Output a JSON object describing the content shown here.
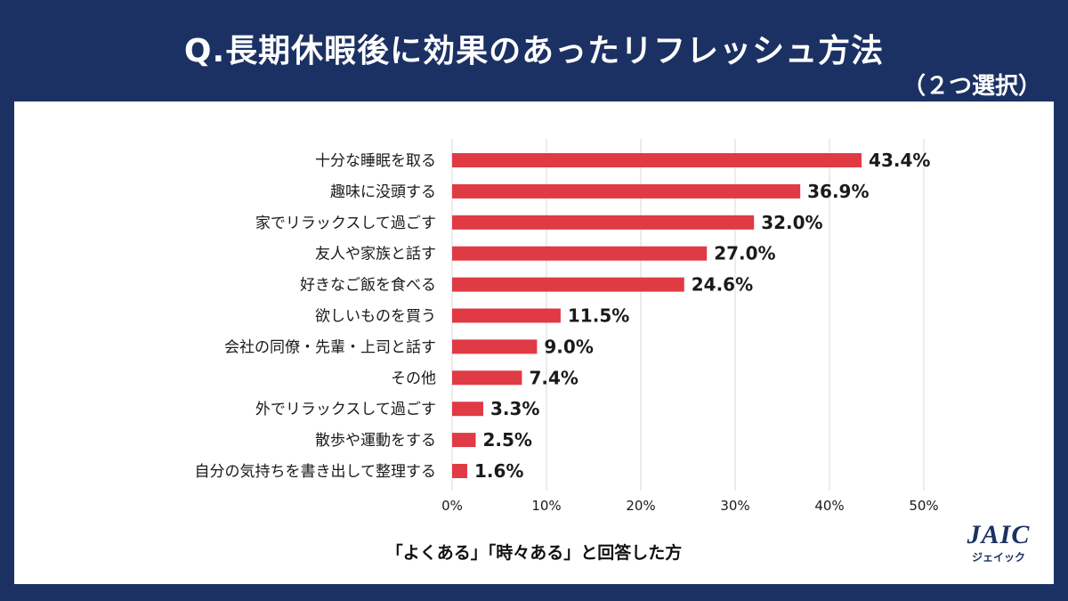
{
  "header": {
    "title": "Q.長期休暇後に効果のあったリフレッシュ方法",
    "subtitle": "（２つ選択）"
  },
  "caption": "「よくある」「時々ある」と回答した方",
  "logo": {
    "mark": "JAIC",
    "sub": "ジェイック"
  },
  "colors": {
    "background": "#1c3163",
    "bar": "#e03a45",
    "panel": "#ffffff",
    "grid": "#d9d9d9"
  },
  "chart_data": {
    "type": "bar",
    "orientation": "horizontal",
    "categories": [
      "十分な睡眠を取る",
      "趣味に没頭する",
      "家でリラックスして過ごす",
      "友人や家族と話す",
      "好きなご飯を食べる",
      "欲しいものを買う",
      "会社の同僚・先輩・上司と話す",
      "その他",
      "外でリラックスして過ごす",
      "散歩や運動をする",
      "自分の気持ちを書き出して整理する"
    ],
    "values": [
      43.4,
      36.9,
      32.0,
      27.0,
      24.6,
      11.5,
      9.0,
      7.4,
      3.3,
      2.5,
      1.6
    ],
    "value_labels": [
      "43.4%",
      "36.9%",
      "32.0%",
      "27.0%",
      "24.6%",
      "11.5%",
      "9.0%",
      "7.4%",
      "3.3%",
      "2.5%",
      "1.6%"
    ],
    "xlim": [
      0,
      50
    ],
    "xticks": [
      "0%",
      "10%",
      "20%",
      "30%",
      "40%",
      "50%"
    ],
    "grid": true
  }
}
